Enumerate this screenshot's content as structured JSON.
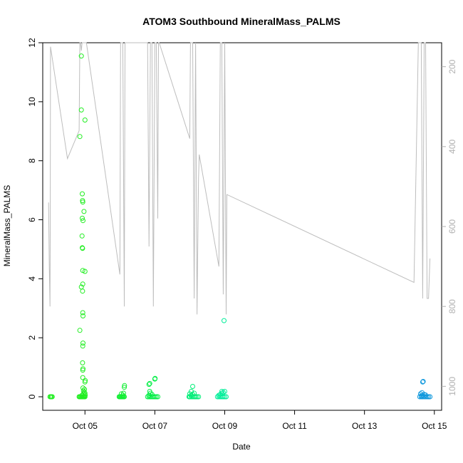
{
  "chart_data": {
    "type": "scatter",
    "title": "ATOM3 Southbound MineralMass_PALMS",
    "xlabel": "Date",
    "ylabel": "MineralMass_PALMS",
    "ylim": [
      0,
      12
    ],
    "y_ticks": [
      0,
      2,
      4,
      6,
      8,
      10,
      12
    ],
    "x_range_days": [
      "2016-10-03T19:00",
      "2016-10-15T05:00"
    ],
    "x_ticks": [
      {
        "date": "2016-10-05",
        "label": "Oct 05"
      },
      {
        "date": "2016-10-07",
        "label": "Oct 07"
      },
      {
        "date": "2016-10-09",
        "label": "Oct 09"
      },
      {
        "date": "2016-10-11",
        "label": "Oct 11"
      },
      {
        "date": "2016-10-13",
        "label": "Oct 13"
      },
      {
        "date": "2016-10-15",
        "label": "Oct 15"
      }
    ],
    "secondary_axis": {
      "reversed": true,
      "ylim": [
        1060,
        140
      ],
      "ticks": [
        200,
        400,
        600,
        800,
        1000
      ],
      "color": "#b0b0b0"
    },
    "grid": false,
    "series": [
      {
        "color": "#22ee22",
        "points": [
          [
            "2016-10-04T00:00",
            0
          ],
          [
            "2016-10-04T00:30",
            0
          ],
          [
            "2016-10-04T01:00",
            0
          ],
          [
            "2016-10-04T01:30",
            0
          ],
          [
            "2016-10-04T20:00",
            0
          ],
          [
            "2016-10-04T20:30",
            0
          ],
          [
            "2016-10-04T21:00",
            0
          ],
          [
            "2016-10-04T21:30",
            0
          ],
          [
            "2016-10-04T22:00",
            0
          ],
          [
            "2016-10-04T22:30",
            0
          ],
          [
            "2016-10-04T23:00",
            0
          ],
          [
            "2016-10-04T23:30",
            0
          ],
          [
            "2016-10-05T00:00",
            0
          ],
          [
            "2016-10-04T22:00",
            0.05
          ],
          [
            "2016-10-04T23:00",
            0.1
          ],
          [
            "2016-10-04T23:30",
            0.15
          ],
          [
            "2016-10-04T23:00",
            0.2
          ],
          [
            "2016-10-04T23:40",
            0.25
          ],
          [
            "2016-10-04T22:40",
            0.3
          ],
          [
            "2016-10-05T00:00",
            0.5
          ],
          [
            "2016-10-05T00:10",
            0.55
          ],
          [
            "2016-10-04T22:30",
            0.65
          ],
          [
            "2016-10-04T22:30",
            0.9
          ],
          [
            "2016-10-04T22:40",
            0.95
          ],
          [
            "2016-10-04T22:20",
            1.15
          ],
          [
            "2016-10-04T22:30",
            1.72
          ],
          [
            "2016-10-04T22:40",
            1.82
          ],
          [
            "2016-10-04T20:30",
            2.25
          ],
          [
            "2016-10-04T22:40",
            2.74
          ],
          [
            "2016-10-04T22:30",
            2.85
          ],
          [
            "2016-10-04T22:20",
            3.58
          ],
          [
            "2016-10-04T21:30",
            3.72
          ],
          [
            "2016-10-04T22:30",
            3.82
          ],
          [
            "2016-10-04T22:30",
            4.28
          ],
          [
            "2016-10-05T00:00",
            4.25
          ],
          [
            "2016-10-04T22:10",
            5.05
          ],
          [
            "2016-10-04T22:20",
            5.03
          ],
          [
            "2016-10-04T22:00",
            5.45
          ],
          [
            "2016-10-04T22:40",
            5.97
          ],
          [
            "2016-10-04T22:10",
            6.05
          ],
          [
            "2016-10-04T23:20",
            6.28
          ],
          [
            "2016-10-04T22:30",
            6.6
          ],
          [
            "2016-10-04T22:20",
            6.65
          ],
          [
            "2016-10-04T22:10",
            6.88
          ],
          [
            "2016-10-04T20:30",
            8.82
          ],
          [
            "2016-10-04T21:30",
            9.72
          ],
          [
            "2016-10-05T00:00",
            9.38
          ],
          [
            "2016-10-04T21:30",
            11.55
          ],
          [
            "2016-10-05T00:10",
            0.05
          ],
          [
            "2016-10-05T00:00",
            0.12
          ]
        ]
      },
      {
        "color": "#11ee33",
        "points": [
          [
            "2016-10-05T23:30",
            0
          ],
          [
            "2016-10-06T00:00",
            0
          ],
          [
            "2016-10-06T00:30",
            0
          ],
          [
            "2016-10-06T01:00",
            0
          ],
          [
            "2016-10-06T01:30",
            0
          ],
          [
            "2016-10-06T02:00",
            0
          ],
          [
            "2016-10-06T02:30",
            0
          ],
          [
            "2016-10-06T03:00",
            0
          ],
          [
            "2016-10-06T02:00",
            0.05
          ],
          [
            "2016-10-06T01:00",
            0.1
          ],
          [
            "2016-10-06T02:30",
            0.12
          ],
          [
            "2016-10-06T03:00",
            0.32
          ],
          [
            "2016-10-06T03:10",
            0.38
          ]
        ]
      },
      {
        "color": "#00ee44",
        "points": [
          [
            "2016-10-06T19:00",
            0
          ],
          [
            "2016-10-06T20:00",
            0
          ],
          [
            "2016-10-06T21:00",
            0
          ],
          [
            "2016-10-06T22:00",
            0
          ],
          [
            "2016-10-06T23:00",
            0
          ],
          [
            "2016-10-07T00:00",
            0
          ],
          [
            "2016-10-07T01:00",
            0
          ],
          [
            "2016-10-07T02:00",
            0
          ],
          [
            "2016-10-06T20:00",
            0.05
          ],
          [
            "2016-10-06T22:00",
            0.08
          ],
          [
            "2016-10-06T21:00",
            0.12
          ],
          [
            "2016-10-06T20:30",
            0.18
          ],
          [
            "2016-10-06T20:00",
            0.42
          ],
          [
            "2016-10-06T20:30",
            0.45
          ],
          [
            "2016-10-07T00:00",
            0.6
          ],
          [
            "2016-10-07T00:10",
            0.62
          ]
        ]
      },
      {
        "color": "#00ee77",
        "points": [
          [
            "2016-10-07T23:30",
            0
          ],
          [
            "2016-10-08T00:00",
            0
          ],
          [
            "2016-10-08T01:00",
            0
          ],
          [
            "2016-10-08T02:00",
            0
          ],
          [
            "2016-10-08T03:00",
            0
          ],
          [
            "2016-10-08T04:00",
            0
          ],
          [
            "2016-10-08T05:00",
            0
          ],
          [
            "2016-10-08T06:00",
            0
          ],
          [
            "2016-10-08T01:00",
            0.05
          ],
          [
            "2016-10-08T02:00",
            0.08
          ],
          [
            "2016-10-08T00:00",
            0.1
          ],
          [
            "2016-10-08T03:00",
            0.12
          ],
          [
            "2016-10-08T01:00",
            0.18
          ],
          [
            "2016-10-08T02:00",
            0.35
          ]
        ]
      },
      {
        "color": "#00ee99",
        "points": [
          [
            "2016-10-08T19:00",
            0
          ],
          [
            "2016-10-08T20:00",
            0
          ],
          [
            "2016-10-08T21:00",
            0
          ],
          [
            "2016-10-08T22:00",
            0
          ],
          [
            "2016-10-08T23:00",
            0
          ],
          [
            "2016-10-09T00:00",
            0
          ],
          [
            "2016-10-09T01:00",
            0
          ],
          [
            "2016-10-08T20:00",
            0.05
          ],
          [
            "2016-10-08T21:00",
            0.08
          ],
          [
            "2016-10-08T22:00",
            0.12
          ],
          [
            "2016-10-08T23:00",
            0.15
          ],
          [
            "2016-10-08T22:00",
            0.18
          ],
          [
            "2016-10-09T00:00",
            0.18
          ],
          [
            "2016-10-08T23:30",
            2.58
          ]
        ]
      },
      {
        "color": "#1199dd",
        "points": [
          [
            "2016-10-14T14:00",
            0
          ],
          [
            "2016-10-14T15:00",
            0
          ],
          [
            "2016-10-14T16:00",
            0
          ],
          [
            "2016-10-14T17:00",
            0
          ],
          [
            "2016-10-14T18:00",
            0
          ],
          [
            "2016-10-14T19:00",
            0
          ],
          [
            "2016-10-14T20:00",
            0
          ],
          [
            "2016-10-14T21:00",
            0
          ],
          [
            "2016-10-14T15:00",
            0.03
          ],
          [
            "2016-10-14T16:00",
            0.05
          ],
          [
            "2016-10-14T17:00",
            0.08
          ],
          [
            "2016-10-14T18:00",
            0.06
          ],
          [
            "2016-10-14T14:30",
            0.1
          ],
          [
            "2016-10-14T15:30",
            0.14
          ],
          [
            "2016-10-14T16:00",
            0.5
          ],
          [
            "2016-10-14T16:20",
            0.52
          ]
        ]
      }
    ],
    "secondary_line": {
      "color": "#bdbdbd",
      "points": [
        [
          "2016-10-03T23:00",
          540
        ],
        [
          "2016-10-03T23:30",
          700
        ],
        [
          "2016-10-04T00:00",
          800
        ],
        [
          "2016-10-04T00:10",
          540
        ],
        [
          "2016-10-04T00:20",
          150
        ],
        [
          "2016-10-04T12:00",
          430
        ],
        [
          "2016-10-04T20:00",
          360
        ],
        [
          "2016-10-04T20:30",
          140
        ],
        [
          "2016-10-04T21:00",
          140
        ],
        [
          "2016-10-04T21:30",
          160
        ],
        [
          "2016-10-04T22:00",
          140
        ],
        [
          "2016-10-04T22:30",
          140
        ],
        [
          "2016-10-04T23:00",
          140
        ],
        [
          "2016-10-05T00:00",
          140
        ],
        [
          "2016-10-05T00:30",
          140
        ],
        [
          "2016-10-05T01:00",
          140
        ],
        [
          "2016-10-06T00:00",
          720
        ],
        [
          "2016-10-06T00:30",
          140
        ],
        [
          "2016-10-06T01:00",
          140
        ],
        [
          "2016-10-06T02:00",
          140
        ],
        [
          "2016-10-06T03:00",
          800
        ],
        [
          "2016-10-06T03:30",
          140
        ],
        [
          "2016-10-06T19:00",
          140
        ],
        [
          "2016-10-06T20:00",
          650
        ],
        [
          "2016-10-06T21:00",
          140
        ],
        [
          "2016-10-06T22:00",
          140
        ],
        [
          "2016-10-06T23:00",
          800
        ],
        [
          "2016-10-07T00:00",
          140
        ],
        [
          "2016-10-07T01:00",
          140
        ],
        [
          "2016-10-07T02:00",
          580
        ],
        [
          "2016-10-07T02:30",
          140
        ],
        [
          "2016-10-07T03:00",
          140
        ],
        [
          "2016-10-08T00:00",
          380
        ],
        [
          "2016-10-08T00:30",
          140
        ],
        [
          "2016-10-08T01:00",
          140
        ],
        [
          "2016-10-08T02:00",
          140
        ],
        [
          "2016-10-08T03:00",
          780
        ],
        [
          "2016-10-08T04:00",
          140
        ],
        [
          "2016-10-08T05:00",
          820
        ],
        [
          "2016-10-08T06:00",
          480
        ],
        [
          "2016-10-08T06:30",
          420
        ],
        [
          "2016-10-08T20:00",
          700
        ],
        [
          "2016-10-08T21:00",
          140
        ],
        [
          "2016-10-08T22:00",
          140
        ],
        [
          "2016-10-08T23:00",
          770
        ],
        [
          "2016-10-09T00:00",
          140
        ],
        [
          "2016-10-09T01:00",
          820
        ],
        [
          "2016-10-09T01:30",
          520
        ],
        [
          "2016-10-14T10:00",
          740
        ],
        [
          "2016-10-14T13:00",
          140
        ],
        [
          "2016-10-14T14:00",
          140
        ],
        [
          "2016-10-14T15:00",
          140
        ],
        [
          "2016-10-14T16:00",
          780
        ],
        [
          "2016-10-14T17:00",
          140
        ],
        [
          "2016-10-14T18:00",
          140
        ],
        [
          "2016-10-14T19:00",
          780
        ],
        [
          "2016-10-14T20:00",
          780
        ],
        [
          "2016-10-14T21:00",
          680
        ]
      ]
    }
  }
}
